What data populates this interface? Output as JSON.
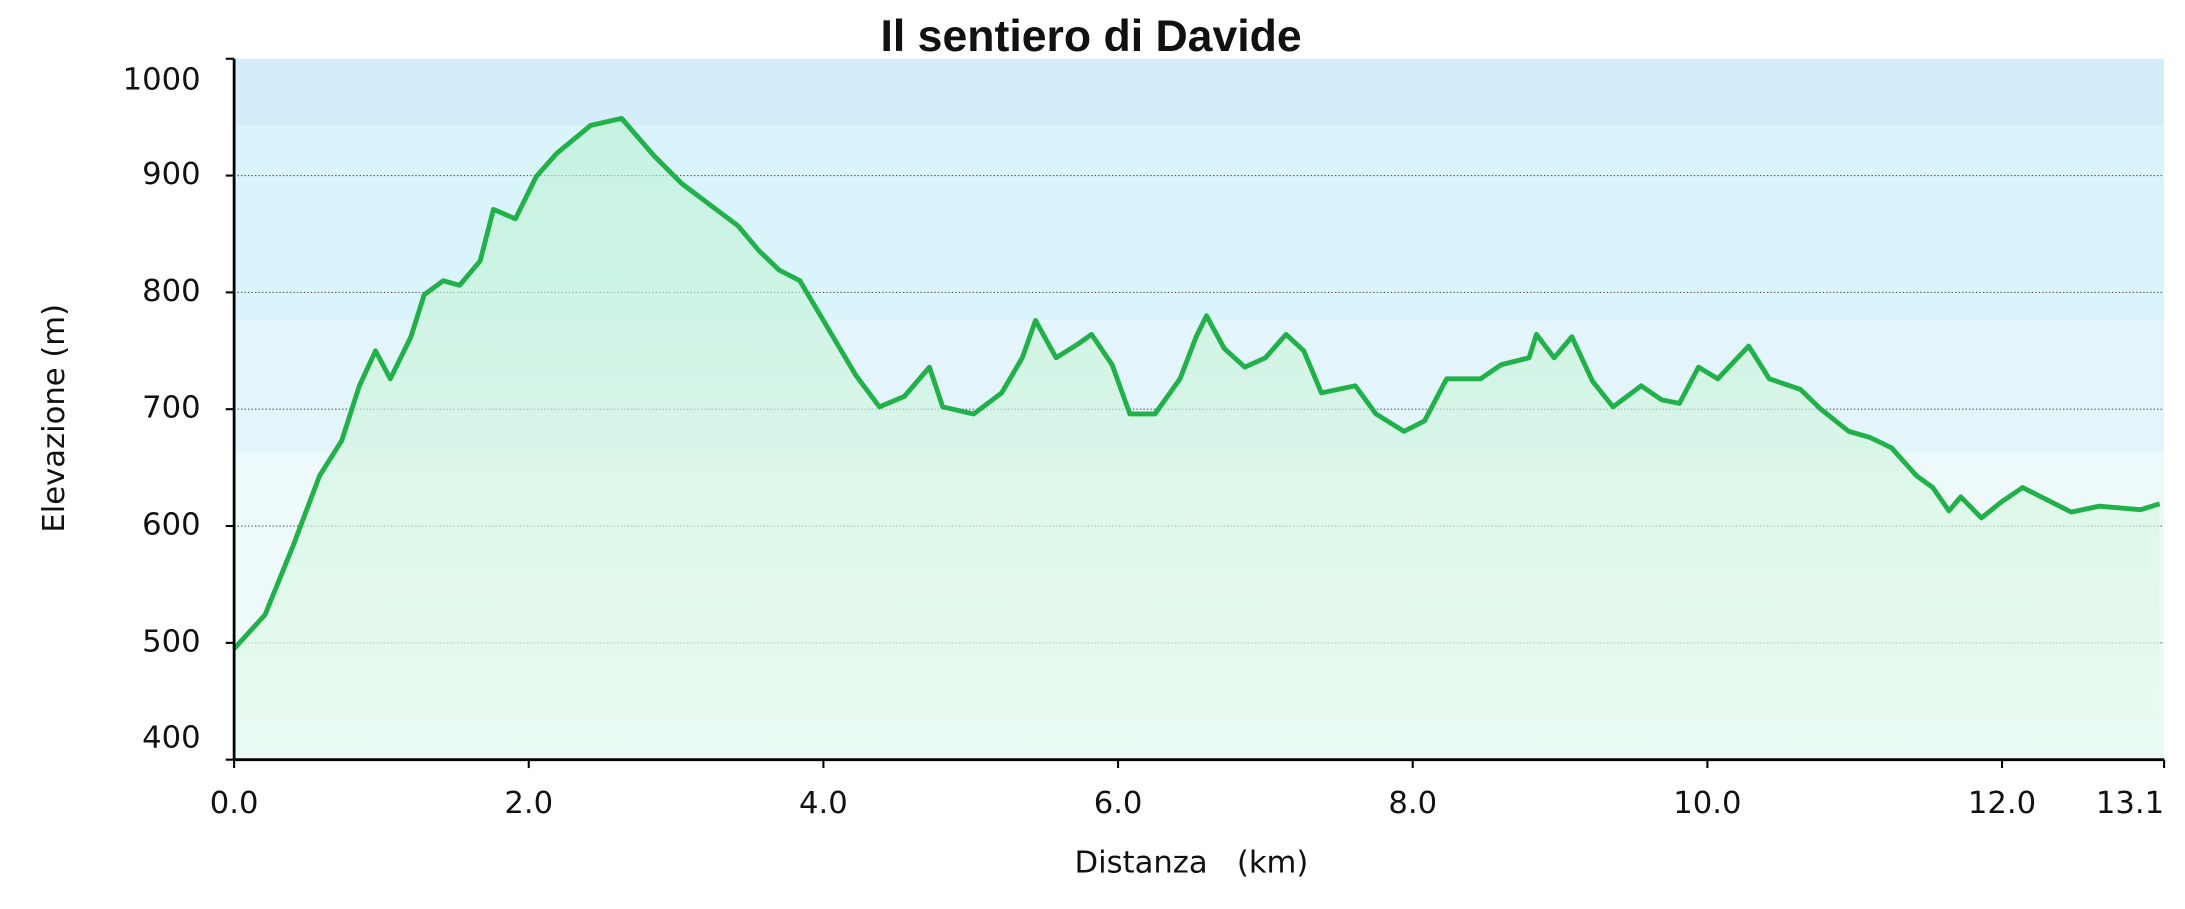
{
  "chart_data": {
    "type": "area",
    "title": "Il sentiero di Davide",
    "x_label": "Distanza   (km)",
    "y_label": "Elevazione (m)",
    "x": [
      0,
      0.21,
      0.4,
      0.58,
      0.73,
      0.85,
      0.96,
      1.06,
      1.2,
      1.29,
      1.42,
      1.53,
      1.67,
      1.76,
      1.91,
      2.05,
      2.19,
      2.42,
      2.63,
      2.85,
      3.04,
      3.23,
      3.42,
      3.56,
      3.7,
      3.84,
      4.0,
      4.22,
      4.38,
      4.55,
      4.72,
      4.81,
      5.02,
      5.21,
      5.35,
      5.44,
      5.58,
      5.73,
      5.82,
      5.96,
      6.08,
      6.25,
      6.42,
      6.53,
      6.6,
      6.72,
      6.86,
      7.0,
      7.14,
      7.26,
      7.38,
      7.61,
      7.75,
      7.94,
      8.08,
      8.23,
      8.46,
      8.6,
      8.79,
      8.84,
      8.96,
      9.08,
      9.22,
      9.36,
      9.55,
      9.69,
      9.81,
      9.94,
      10.07,
      10.28,
      10.42,
      10.63,
      10.77,
      10.96,
      11.1,
      11.25,
      11.42,
      11.53,
      11.64,
      11.72,
      11.86,
      12.0,
      12.14,
      12.28,
      12.47,
      12.66,
      12.94,
      13.07
    ],
    "values": [
      495,
      524,
      583,
      643,
      673,
      720,
      750,
      726,
      762,
      798,
      810,
      806,
      827,
      871,
      863,
      899,
      919,
      943,
      949,
      917,
      893,
      875,
      857,
      836,
      819,
      810,
      776,
      729,
      702,
      711,
      736,
      702,
      696,
      714,
      744,
      776,
      744,
      756,
      764,
      738,
      696,
      696,
      726,
      762,
      780,
      752,
      736,
      744,
      764,
      750,
      714,
      720,
      696,
      681,
      690,
      726,
      726,
      738,
      744,
      764,
      744,
      762,
      724,
      702,
      720,
      708,
      705,
      736,
      726,
      754,
      726,
      717,
      700,
      681,
      676,
      667,
      643,
      633,
      613,
      625,
      607,
      621,
      633,
      624,
      612,
      617,
      614,
      619
    ],
    "color": "#22b04a",
    "xlim": [
      0,
      13.1
    ],
    "ylim": [
      400,
      1000
    ],
    "xticks": [
      {
        "value": 0,
        "label": "0.0"
      },
      {
        "value": 2,
        "label": "2.0"
      },
      {
        "value": 4,
        "label": "4.0"
      },
      {
        "value": 6,
        "label": "6.0"
      },
      {
        "value": 8,
        "label": "8.0"
      },
      {
        "value": 10,
        "label": "10.0"
      },
      {
        "value": 12,
        "label": "12.0"
      },
      {
        "value": 13.1,
        "label": "13.1"
      }
    ],
    "yticks": [
      400,
      500,
      600,
      700,
      800,
      900,
      1000
    ],
    "grid": true
  }
}
